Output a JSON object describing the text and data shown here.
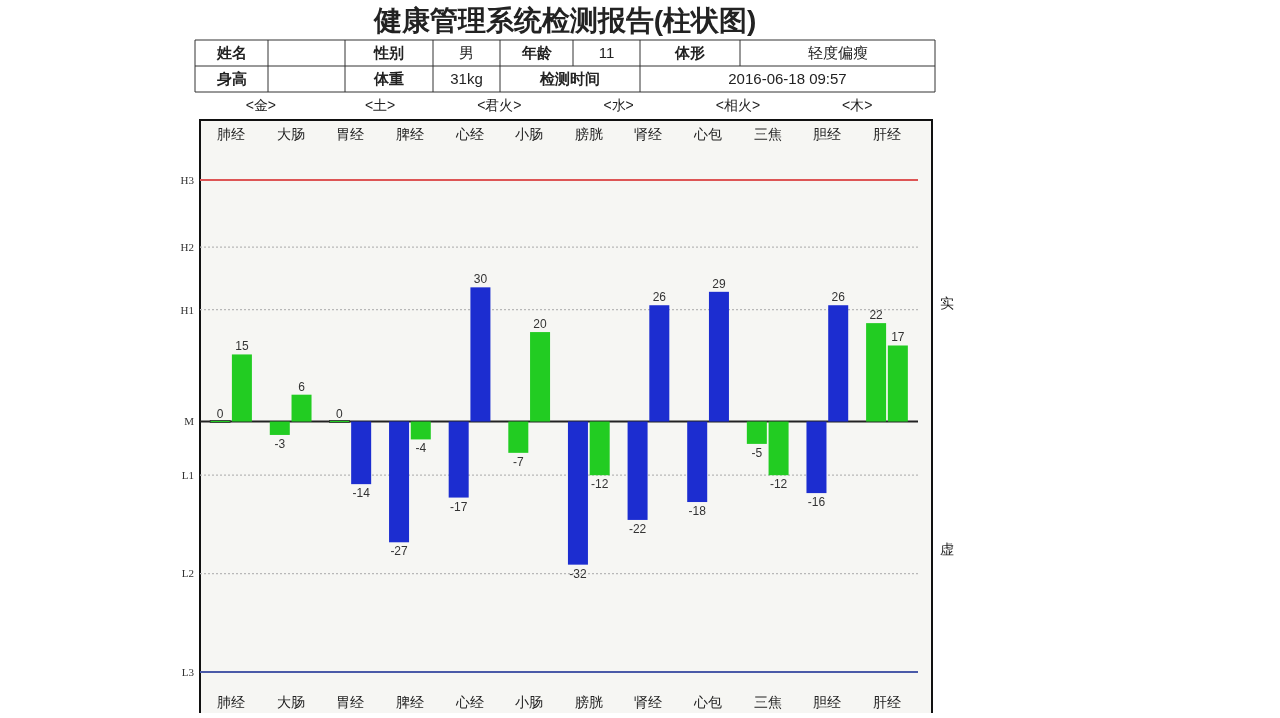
{
  "chart_data": [
    {
      "type": "other",
      "title": "健康管理系统检测报告(柱状图)",
      "annotations": [
        "姓名",
        "性别",
        "男",
        "年龄",
        "11",
        "体形",
        "轻度偏瘦",
        "身高",
        "体重",
        "31kg",
        "检测时间",
        "2016-06-18 09:57"
      ]
    },
    {
      "type": "bar",
      "categories": [
        "肺经",
        "大肠",
        "胃经",
        "脾经",
        "心经",
        "小肠",
        "膀胱",
        "肾经",
        "心包",
        "三焦",
        "胆经",
        "肝经"
      ],
      "series": [
        {
          "values": [
            0,
            -3,
            0,
            -27,
            -17,
            -7,
            -32,
            -22,
            -18,
            -5,
            -16,
            22
          ],
          "colors": [
            "#22cc22",
            "#22cc22",
            "#22cc22",
            "#1c2dd0",
            "#1c2dd0",
            "#22cc22",
            "#1c2dd0",
            "#1c2dd0",
            "#1c2dd0",
            "#22cc22",
            "#1c2dd0",
            "#22cc22"
          ]
        },
        {
          "values": [
            15,
            6,
            -14,
            -4,
            30,
            20,
            -12,
            26,
            29,
            -12,
            26,
            17
          ],
          "colors": [
            "#22cc22",
            "#22cc22",
            "#1c2dd0",
            "#22cc22",
            "#1c2dd0",
            "#22cc22",
            "#22cc22",
            "#1c2dd0",
            "#1c2dd0",
            "#22cc22",
            "#1c2dd0",
            "#22cc22"
          ]
        }
      ],
      "data_labels": true,
      "ref_lines": [
        {
          "axis": "y",
          "value": 54,
          "label": "H3",
          "color": "#dd5555"
        },
        {
          "axis": "y",
          "value": 39,
          "label": "H2",
          "color": "#b8b8b8",
          "line_style": "dotted"
        },
        {
          "axis": "y",
          "value": 25,
          "label": "H1",
          "color": "#b8b8b8",
          "line_style": "dotted"
        },
        {
          "axis": "y",
          "value": 0,
          "label": "M",
          "color": "#222222"
        },
        {
          "axis": "y",
          "value": -12,
          "label": "L1",
          "color": "#b8b8b8",
          "line_style": "dotted"
        },
        {
          "axis": "y",
          "value": -34,
          "label": "L2",
          "color": "#b8b8b8",
          "line_style": "dotted"
        },
        {
          "axis": "y",
          "value": -56,
          "label": "L3",
          "color": "#4a5aa8"
        }
      ],
      "annotations": [
        "<金>",
        "<土>",
        "<君火>",
        "<水>",
        "<相火>",
        "<木>",
        "实",
        "虚"
      ]
    }
  ]
}
